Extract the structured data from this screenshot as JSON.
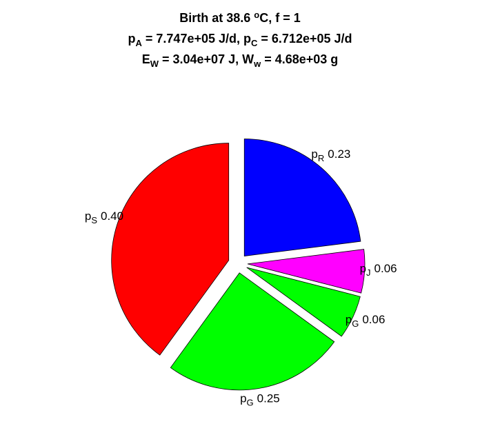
{
  "chart_data": {
    "type": "pie",
    "title_lines": [
      [
        "Birth at 38.6 ",
        "o",
        "C, f = 1"
      ],
      [
        "p",
        "A",
        " = 7.747e+05 J/d, p",
        "C",
        " = 6.712e+05 J/d"
      ],
      [
        "E",
        "W",
        " = 3.04e+07 J, W",
        "w",
        " = 4.68e+03 g"
      ]
    ],
    "title_scripts": [
      "super",
      "sub",
      "sub"
    ],
    "categories": [
      "p",
      "p",
      "p",
      "p",
      "p"
    ],
    "subscripts": [
      "R",
      "J",
      "G",
      "G",
      "S"
    ],
    "values": [
      0.23,
      0.06,
      0.06,
      0.25,
      0.4
    ],
    "value_labels": [
      "0.23",
      "0.06",
      "0.06",
      "0.25",
      "0.40"
    ],
    "colors": [
      "#0000ff",
      "#ff00ff",
      "#00ff00",
      "#00ff00",
      "#ff0000"
    ],
    "exploded": true
  }
}
